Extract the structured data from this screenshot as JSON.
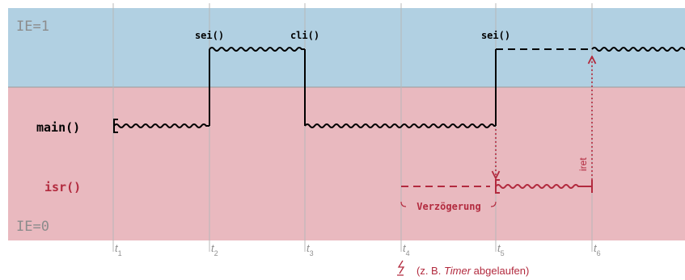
{
  "regions": {
    "upper_label": "IE=1",
    "lower_label": "IE=0",
    "upper_color": "#b1d0e2",
    "lower_color": "#e9b9bf"
  },
  "tracks": {
    "main_label": "main()",
    "isr_label": "isr()"
  },
  "instructions": {
    "sei_1": "sei()",
    "cli": "cli()",
    "sei_2": "sei()"
  },
  "annotations": {
    "delay_label": "Verzögerung",
    "iret_label": "iret",
    "event_text_prefix": "(z. B. ",
    "event_text_italic": "Timer",
    "event_text_suffix": " abgelaufen)"
  },
  "time_axis": {
    "symbol": "t",
    "ticks": [
      "1",
      "2",
      "3",
      "4",
      "5",
      "6"
    ]
  },
  "colors": {
    "main_line": "#000000",
    "isr_accent": "#b22a3e",
    "grid": "#b8b8b8",
    "region_text": "#8c8c8c",
    "tick_text": "#909090"
  }
}
